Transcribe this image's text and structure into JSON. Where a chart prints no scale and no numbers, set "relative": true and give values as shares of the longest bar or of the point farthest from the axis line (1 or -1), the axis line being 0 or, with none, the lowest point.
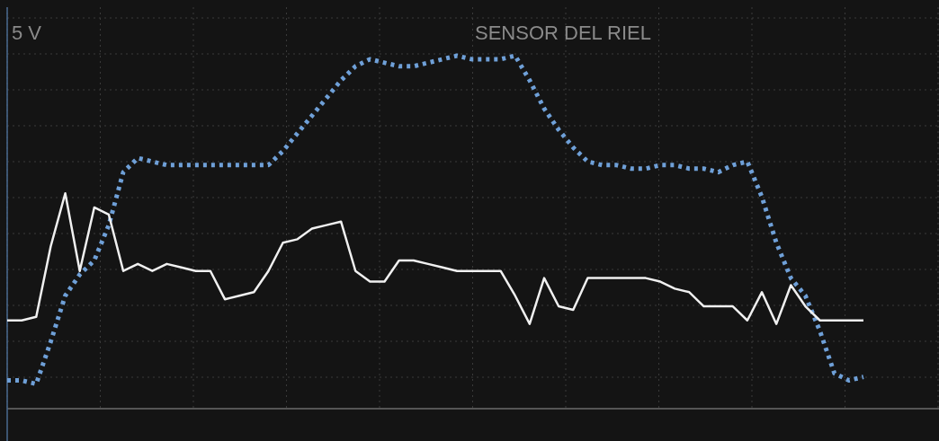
{
  "chart_data": {
    "type": "line",
    "title": "SENSOR DEL RIEL",
    "annotations": [
      "5 V"
    ],
    "relative": true,
    "grid": true,
    "categories": [
      null,
      null,
      null,
      null,
      null,
      null,
      null,
      null,
      null,
      null,
      null,
      null,
      null,
      null,
      null,
      null,
      null,
      null,
      null,
      null,
      null,
      null,
      null,
      null,
      null,
      null,
      null,
      null,
      null,
      null,
      null,
      null,
      null,
      null,
      null,
      null,
      null,
      null,
      null,
      null,
      null,
      null,
      null,
      null,
      null,
      null,
      null,
      null,
      null,
      null,
      null,
      null,
      null,
      null,
      null,
      null,
      null,
      null,
      null,
      null
    ],
    "series": [
      {
        "color": "#6fa0d8",
        "line_style": "dotted",
        "values": [
          0.08,
          0.08,
          0.07,
          0.19,
          0.32,
          0.38,
          0.42,
          0.52,
          0.67,
          0.71,
          0.7,
          0.69,
          0.69,
          0.69,
          0.69,
          0.69,
          0.69,
          0.69,
          0.69,
          0.73,
          0.78,
          0.83,
          0.88,
          0.93,
          0.97,
          0.99,
          0.98,
          0.97,
          0.97,
          0.98,
          0.99,
          1.0,
          0.99,
          0.99,
          0.99,
          1.0,
          0.93,
          0.85,
          0.79,
          0.74,
          0.7,
          0.69,
          0.69,
          0.68,
          0.68,
          0.69,
          0.69,
          0.68,
          0.68,
          0.67,
          0.69,
          0.7,
          0.6,
          0.47,
          0.37,
          0.32,
          0.22,
          0.1,
          0.08,
          0.09
        ]
      },
      {
        "color": "#f0f0f0",
        "line_style": "solid",
        "values": [
          0.25,
          0.25,
          0.26,
          0.46,
          0.61,
          0.39,
          0.57,
          0.55,
          0.39,
          0.41,
          0.39,
          0.41,
          0.4,
          0.39,
          0.39,
          0.31,
          0.32,
          0.33,
          0.39,
          0.47,
          0.48,
          0.51,
          0.52,
          0.53,
          0.39,
          0.36,
          0.36,
          0.42,
          0.42,
          0.41,
          0.4,
          0.39,
          0.39,
          0.39,
          0.39,
          0.32,
          0.24,
          0.37,
          0.29,
          0.28,
          0.37,
          0.37,
          0.37,
          0.37,
          0.37,
          0.36,
          0.34,
          0.33,
          0.29,
          0.29,
          0.29,
          0.25,
          0.33,
          0.24,
          0.35,
          0.29,
          0.25,
          0.25,
          0.25,
          0.25
        ]
      }
    ]
  }
}
